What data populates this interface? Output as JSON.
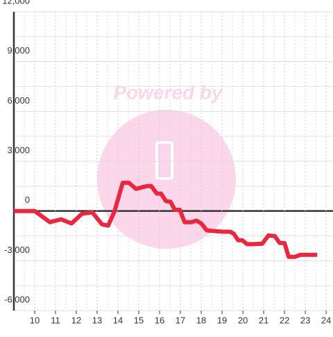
{
  "chart_data": {
    "type": "line",
    "watermark": "Powered by",
    "x": [
      9.0,
      10.0,
      10.73,
      11.27,
      11.77,
      12.27,
      12.77,
      13.23,
      13.53,
      13.83,
      14.23,
      14.53,
      14.87,
      15.13,
      15.4,
      15.6,
      15.87,
      16.07,
      16.3,
      16.53,
      16.73,
      16.97,
      17.2,
      17.53,
      17.77,
      18.0,
      18.27,
      18.67,
      19.07,
      19.4,
      19.57,
      19.77,
      19.97,
      20.2,
      20.5,
      20.93,
      21.23,
      21.53,
      21.77,
      22.0,
      22.2,
      22.5,
      22.77,
      23.17,
      23.57
    ],
    "values": [
      0,
      0,
      -670,
      -500,
      -750,
      -170,
      -80,
      -800,
      -880,
      -40,
      1700,
      1700,
      1330,
      1420,
      1500,
      1500,
      1050,
      1050,
      600,
      550,
      70,
      70,
      -670,
      -670,
      -580,
      -750,
      -1170,
      -1210,
      -1250,
      -1250,
      -1380,
      -1760,
      -1760,
      -2000,
      -2000,
      -1970,
      -1470,
      -1510,
      -1930,
      -1930,
      -2760,
      -2760,
      -2640,
      -2640,
      -2640
    ],
    "color": "#e8283f",
    "xlim": [
      9,
      24.33
    ],
    "xticks": [
      10,
      11,
      12,
      13,
      14,
      15,
      16,
      17,
      18,
      19,
      20,
      21,
      22,
      23,
      24
    ],
    "ylim": [
      -6000,
      12000
    ],
    "yticks": [
      {
        "value": -6000,
        "label": "-6,000"
      },
      {
        "value": -3000,
        "label": "-3,000"
      },
      0,
      {
        "value": 3000,
        "label": "3,000"
      },
      {
        "value": 6000,
        "label": "6,000"
      },
      {
        "value": 9000,
        "label": "9,000"
      },
      {
        "value": 12000,
        "label": "12,000"
      }
    ],
    "grid": true
  }
}
